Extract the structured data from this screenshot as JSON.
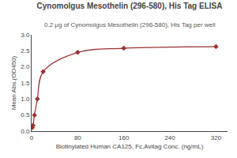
{
  "chart_data": {
    "type": "line",
    "title": "Cynomolgus Mesothelin (296-580), His Tag ELISA",
    "subtitle": "0.2 μg of Cynomolgus Mesothelin (296-580), His Tag per well",
    "xlabel": "Biotinylated Human CA125, Fc,Avitag Conc. (ng/mL)",
    "ylabel": "Mean Abs.(OD450)",
    "x": [
      1.25,
      2.5,
      5,
      10,
      20,
      80,
      160,
      320
    ],
    "values": [
      0.11,
      0.18,
      0.5,
      1.0,
      1.85,
      2.45,
      2.58,
      2.63
    ],
    "color": "#9B3030",
    "marker": "diamond",
    "xlim": [
      0,
      340
    ],
    "ylim": [
      0,
      3.0
    ],
    "xticks": [
      0,
      80,
      160,
      240,
      320
    ],
    "yticks": [
      {
        "value": 0.0,
        "label": "0.0"
      },
      0.5,
      {
        "value": 1.0,
        "label": "1.0"
      },
      1.5,
      {
        "value": 2.0,
        "label": "2.0"
      },
      2.5,
      {
        "value": 3.0,
        "label": "3.0"
      }
    ],
    "grid": false
  }
}
